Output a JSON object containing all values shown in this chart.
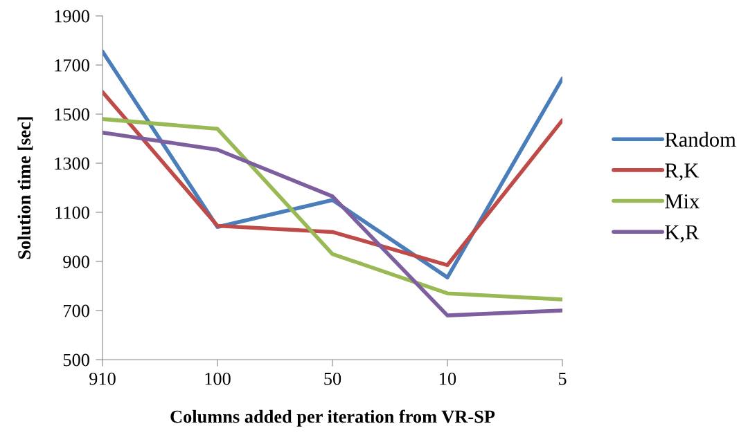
{
  "chart_data": {
    "type": "line",
    "xlabel": "Columns added per iteration from VR-SP",
    "ylabel": "Solution time [sec]",
    "categories": [
      "910",
      "100",
      "50",
      "10",
      "5"
    ],
    "series": [
      {
        "name": "Random",
        "color": "#4a7ebb",
        "values": [
          1755,
          1040,
          1150,
          835,
          1645
        ]
      },
      {
        "name": "R,K",
        "color": "#be4b48",
        "values": [
          1590,
          1045,
          1020,
          885,
          1475
        ]
      },
      {
        "name": "Mix",
        "color": "#98b954",
        "values": [
          1480,
          1440,
          930,
          770,
          745
        ]
      },
      {
        "name": "K,R",
        "color": "#7d5fa0",
        "values": [
          1425,
          1355,
          1165,
          680,
          700
        ]
      }
    ],
    "ylim": [
      500,
      1900
    ],
    "yticks": [
      500,
      700,
      900,
      1100,
      1300,
      1500,
      1700,
      1900
    ],
    "grid": false,
    "legend": "right",
    "marker": "none",
    "line_style": "solid"
  }
}
